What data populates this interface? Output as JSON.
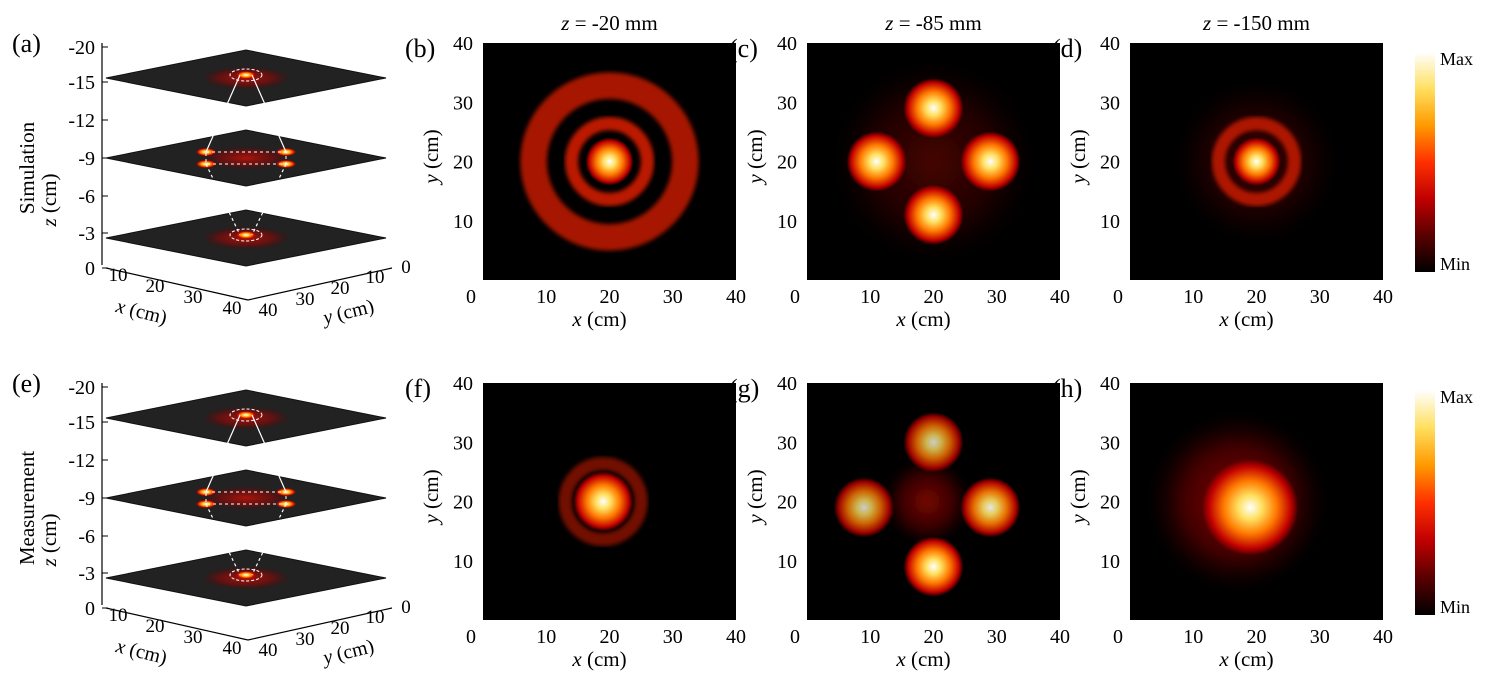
{
  "figure": {
    "colorbar": {
      "max_label": "Max",
      "min_label": "Min",
      "gradient": [
        "#000000",
        "#5a0000",
        "#c00000",
        "#ff3000",
        "#ff9a00",
        "#ffe060",
        "#ffffff"
      ]
    },
    "column_titles": [
      "z = -20 mm",
      "z = -85 mm",
      "z = -150 mm"
    ],
    "column_title_var": "z",
    "column_title_vals": [
      "= -20 mm",
      "= -85 mm",
      "= -150 mm"
    ],
    "heatmap_axes": {
      "xlabel_var": "x",
      "xlabel_unit": "(cm)",
      "ylabel_var": "y",
      "ylabel_unit": "(cm)",
      "xticks": [
        "0",
        "10",
        "20",
        "30",
        "40"
      ],
      "yticks": [
        "10",
        "20",
        "30",
        "40"
      ]
    },
    "stack_axes": {
      "row_labels": [
        "Simulation",
        "Measurement"
      ],
      "z_var": "z",
      "z_unit": "(cm)",
      "zticks": [
        "-20",
        "-15",
        "-12",
        "-9",
        "-6",
        "-3",
        "0"
      ],
      "x_var": "x",
      "x_unit": "(cm)",
      "xticks": [
        "10",
        "20",
        "30",
        "40"
      ],
      "y_var": "y",
      "y_unit": "(cm)",
      "yticks": [
        "0",
        "10",
        "20",
        "30",
        "40"
      ]
    },
    "panels": [
      {
        "label": "(a)",
        "kind": "stack",
        "row": 0
      },
      {
        "label": "(b)",
        "kind": "heatmap",
        "row": 0,
        "col": 0
      },
      {
        "label": "(c)",
        "kind": "heatmap",
        "row": 0,
        "col": 1
      },
      {
        "label": "(d)",
        "kind": "heatmap",
        "row": 0,
        "col": 2
      },
      {
        "label": "(e)",
        "kind": "stack",
        "row": 1
      },
      {
        "label": "(f)",
        "kind": "heatmap",
        "row": 1,
        "col": 0
      },
      {
        "label": "(g)",
        "kind": "heatmap",
        "row": 1,
        "col": 1
      },
      {
        "label": "(h)",
        "kind": "heatmap",
        "row": 1,
        "col": 2
      }
    ]
  },
  "chart_data": [
    {
      "type": "heatmap",
      "panel": "(b)",
      "title": "z = -20 mm",
      "xlabel": "x (cm)",
      "ylabel": "y (cm)",
      "xlim": [
        0,
        40
      ],
      "ylim": [
        0,
        40
      ],
      "features": [
        {
          "shape": "spot",
          "x": 20,
          "y": 20,
          "r": 2,
          "intensity": 1.0
        },
        {
          "shape": "ring",
          "x": 20,
          "y": 20,
          "r": 6,
          "intensity": 0.6
        },
        {
          "shape": "ring",
          "x": 20,
          "y": 20,
          "r": 12,
          "intensity": 0.5
        }
      ]
    },
    {
      "type": "heatmap",
      "panel": "(c)",
      "title": "z = -85 mm",
      "xlabel": "x (cm)",
      "ylabel": "y (cm)",
      "xlim": [
        0,
        40
      ],
      "ylim": [
        0,
        40
      ],
      "features": [
        {
          "shape": "spot",
          "x": 11,
          "y": 20,
          "r": 2.5,
          "intensity": 1.0
        },
        {
          "shape": "spot",
          "x": 29,
          "y": 20,
          "r": 2.5,
          "intensity": 1.0
        },
        {
          "shape": "spot",
          "x": 20,
          "y": 29,
          "r": 2.5,
          "intensity": 1.0
        },
        {
          "shape": "spot",
          "x": 20,
          "y": 11,
          "r": 2.5,
          "intensity": 1.0
        },
        {
          "shape": "haze",
          "x": 20,
          "y": 20,
          "r": 16,
          "intensity": 0.35
        }
      ]
    },
    {
      "type": "heatmap",
      "panel": "(d)",
      "title": "z = -150 mm",
      "xlabel": "x (cm)",
      "ylabel": "y (cm)",
      "xlim": [
        0,
        40
      ],
      "ylim": [
        0,
        40
      ],
      "features": [
        {
          "shape": "spot",
          "x": 20,
          "y": 20,
          "r": 2,
          "intensity": 1.0
        },
        {
          "shape": "ring",
          "x": 20,
          "y": 20,
          "r": 6,
          "intensity": 0.5
        },
        {
          "shape": "haze",
          "x": 20,
          "y": 20,
          "r": 13,
          "intensity": 0.3
        }
      ]
    },
    {
      "type": "heatmap",
      "panel": "(f)",
      "title": "",
      "xlabel": "x (cm)",
      "ylabel": "y (cm)",
      "xlim": [
        0,
        40
      ],
      "ylim": [
        0,
        40
      ],
      "features": [
        {
          "shape": "spot",
          "x": 19,
          "y": 20,
          "r": 2.5,
          "intensity": 1.0
        },
        {
          "shape": "ring",
          "x": 19,
          "y": 20,
          "r": 6,
          "intensity": 0.25
        }
      ]
    },
    {
      "type": "heatmap",
      "panel": "(g)",
      "title": "",
      "xlabel": "x (cm)",
      "ylabel": "y (cm)",
      "xlim": [
        0,
        40
      ],
      "ylim": [
        0,
        40
      ],
      "features": [
        {
          "shape": "spot",
          "x": 9,
          "y": 19,
          "r": 2.5,
          "intensity": 0.8
        },
        {
          "shape": "spot",
          "x": 29,
          "y": 19,
          "r": 2.5,
          "intensity": 0.9
        },
        {
          "shape": "spot",
          "x": 20,
          "y": 30,
          "r": 2.5,
          "intensity": 0.8
        },
        {
          "shape": "spot",
          "x": 20,
          "y": 9,
          "r": 2.5,
          "intensity": 1.0
        },
        {
          "shape": "haze",
          "x": 19,
          "y": 20,
          "r": 7,
          "intensity": 0.6
        }
      ]
    },
    {
      "type": "heatmap",
      "panel": "(h)",
      "title": "",
      "xlabel": "x (cm)",
      "ylabel": "y (cm)",
      "xlim": [
        0,
        40
      ],
      "ylim": [
        0,
        40
      ],
      "features": [
        {
          "shape": "spot",
          "x": 19,
          "y": 19,
          "r": 4,
          "intensity": 1.0
        },
        {
          "shape": "haze",
          "x": 17,
          "y": 20,
          "r": 14,
          "intensity": 0.7
        }
      ]
    }
  ]
}
